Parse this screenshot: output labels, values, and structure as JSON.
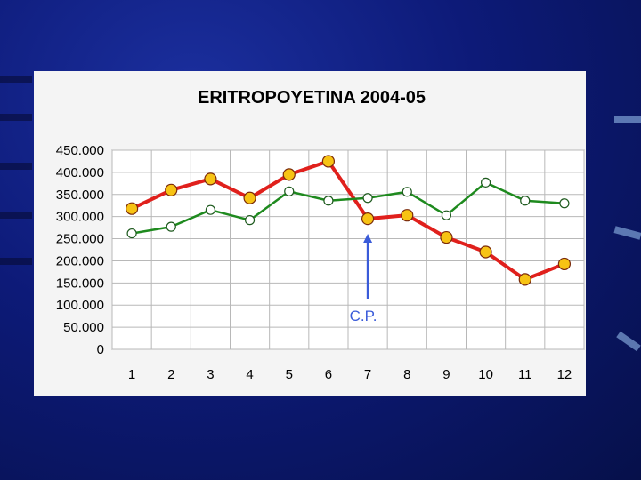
{
  "chart_data": {
    "type": "line",
    "title": "ERITROPOYETINA 2004-05",
    "categories": [
      "1",
      "2",
      "3",
      "4",
      "5",
      "6",
      "7",
      "8",
      "9",
      "10",
      "11",
      "12"
    ],
    "y_ticks": [
      "0",
      "50.000",
      "100.000",
      "150.000",
      "200.000",
      "250.000",
      "300.000",
      "350.000",
      "400.000",
      "450.000"
    ],
    "ylim": [
      0,
      450000
    ],
    "grid": true,
    "series": [
      {
        "color": "#e0201c",
        "marker_fill": "#f7c314",
        "values": [
          318000,
          360000,
          385000,
          342000,
          395000,
          425000,
          295000,
          303000,
          253000,
          220000,
          158000,
          193000
        ]
      },
      {
        "color": "#1e8a1e",
        "marker_fill": "#ffffff",
        "values": [
          262000,
          277000,
          315000,
          292000,
          357000,
          336000,
          342000,
          356000,
          303000,
          377000,
          336000,
          330000
        ]
      }
    ],
    "annotation": {
      "text": "C.P.",
      "category": "7",
      "color": "#3a5bd9"
    }
  }
}
